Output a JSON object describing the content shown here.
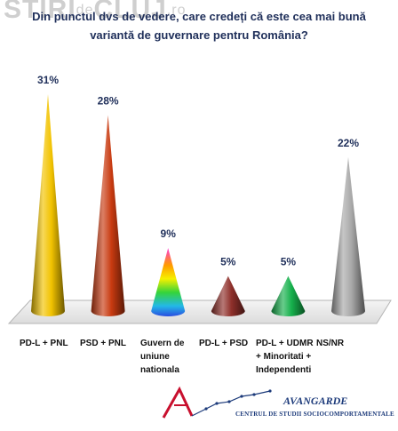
{
  "watermark": {
    "brand": "STIRI",
    "middle": "de",
    "brand2": "CLUJ",
    "tld": ".ro"
  },
  "chart_data": {
    "type": "bar",
    "title_line1": "Din punctul dvs de vedere, care credeți că este cea mai bună",
    "title_line2": "variantă de guvernare pentru România?",
    "categories": [
      "PD-L + PNL",
      "PSD + PNL",
      "Guvern de uniune nationala",
      "PD-L + PSD",
      "PD-L + UDMR + Minoritati + Independenti",
      "NS/NR"
    ],
    "category_lines": [
      [
        "PD-L + PNL"
      ],
      [
        "PSD + PNL"
      ],
      [
        "Guvern de",
        "uniune",
        "nationala"
      ],
      [
        "PD-L + PSD"
      ],
      [
        "PD-L + UDMR",
        "+ Minoritati +",
        "Independenti"
      ],
      [
        "NS/NR"
      ]
    ],
    "values": [
      31,
      28,
      9,
      5,
      5,
      22
    ],
    "value_labels": [
      "31%",
      "28%",
      "9%",
      "5%",
      "5%",
      "22%"
    ],
    "colors": [
      "#f2c300",
      "#c83a10",
      "rainbow",
      "#8e2f2a",
      "#16b04c",
      "#a8a8a8"
    ],
    "ylim": [
      0,
      31
    ],
    "grid": false,
    "legend": "none"
  },
  "logo": {
    "name": "AVANGARDE",
    "subtitle": "CENTRUL DE STUDII SOCIOCOMPORTAMENTALE"
  }
}
